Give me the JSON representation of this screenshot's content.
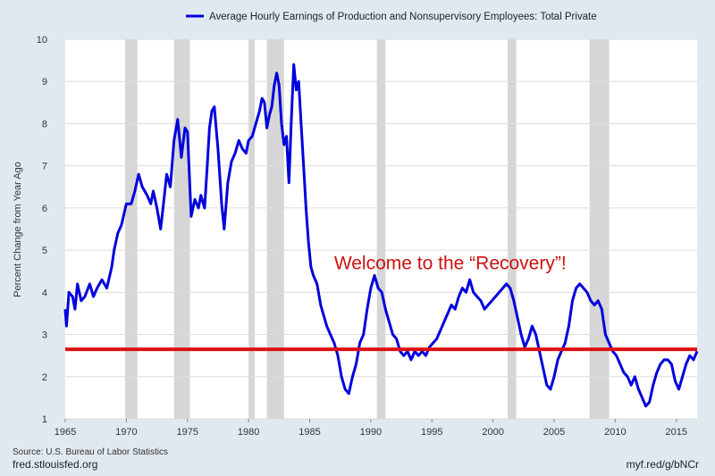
{
  "chart_data": {
    "type": "line",
    "legend": "Average Hourly Earnings of Production and Nonsupervisory Employees: Total Private",
    "legend_placement": "top-center",
    "ylabel": "Percent Change from Year Ago",
    "xlabel": "",
    "xlim": [
      1965,
      2016.7
    ],
    "ylim": [
      1,
      10
    ],
    "x_ticks": [
      "1965",
      "1970",
      "1975",
      "1980",
      "1985",
      "1990",
      "1995",
      "2000",
      "2005",
      "2010",
      "2015"
    ],
    "y_ticks": [
      "1",
      "2",
      "3",
      "4",
      "5",
      "6",
      "7",
      "8",
      "9",
      "10"
    ],
    "grid": "horizontal",
    "line_color": "#0000dd",
    "recession_color": "#d6d6d6",
    "recessions": [
      [
        1969.9,
        1970.9
      ],
      [
        1973.9,
        1975.2
      ],
      [
        1980.0,
        1980.5
      ],
      [
        1981.5,
        1982.9
      ],
      [
        1990.5,
        1991.2
      ],
      [
        2001.2,
        2001.9
      ],
      [
        2007.9,
        2009.5
      ]
    ],
    "reference_line": {
      "y": 2.65,
      "color": "#dd1111"
    },
    "annotation": {
      "text": "Welcome to the “Recovery”!",
      "x": 1996.5,
      "y": 4.55,
      "color": "#cc1111"
    },
    "series": [
      {
        "points": [
          [
            1965.0,
            3.6
          ],
          [
            1965.1,
            3.2
          ],
          [
            1965.3,
            4.0
          ],
          [
            1965.6,
            3.9
          ],
          [
            1965.8,
            3.6
          ],
          [
            1966.0,
            4.2
          ],
          [
            1966.3,
            3.8
          ],
          [
            1966.6,
            3.9
          ],
          [
            1967.0,
            4.2
          ],
          [
            1967.3,
            3.9
          ],
          [
            1967.6,
            4.1
          ],
          [
            1968.0,
            4.3
          ],
          [
            1968.4,
            4.1
          ],
          [
            1968.8,
            4.6
          ],
          [
            1969.0,
            5.0
          ],
          [
            1969.3,
            5.4
          ],
          [
            1969.6,
            5.6
          ],
          [
            1970.0,
            6.1
          ],
          [
            1970.4,
            6.1
          ],
          [
            1970.7,
            6.4
          ],
          [
            1971.0,
            6.8
          ],
          [
            1971.3,
            6.5
          ],
          [
            1971.7,
            6.3
          ],
          [
            1972.0,
            6.1
          ],
          [
            1972.2,
            6.4
          ],
          [
            1972.5,
            6.0
          ],
          [
            1972.8,
            5.5
          ],
          [
            1973.0,
            6.0
          ],
          [
            1973.3,
            6.8
          ],
          [
            1973.6,
            6.5
          ],
          [
            1973.9,
            7.6
          ],
          [
            1974.2,
            8.1
          ],
          [
            1974.5,
            7.2
          ],
          [
            1974.8,
            7.9
          ],
          [
            1975.0,
            7.8
          ],
          [
            1975.3,
            5.8
          ],
          [
            1975.6,
            6.2
          ],
          [
            1975.9,
            6.0
          ],
          [
            1976.1,
            6.3
          ],
          [
            1976.4,
            6.0
          ],
          [
            1976.6,
            6.9
          ],
          [
            1976.8,
            7.9
          ],
          [
            1977.0,
            8.3
          ],
          [
            1977.2,
            8.4
          ],
          [
            1977.5,
            7.4
          ],
          [
            1977.8,
            6.1
          ],
          [
            1978.0,
            5.5
          ],
          [
            1978.3,
            6.6
          ],
          [
            1978.6,
            7.1
          ],
          [
            1978.9,
            7.3
          ],
          [
            1979.2,
            7.6
          ],
          [
            1979.5,
            7.4
          ],
          [
            1979.8,
            7.3
          ],
          [
            1980.0,
            7.6
          ],
          [
            1980.3,
            7.7
          ],
          [
            1980.6,
            8.0
          ],
          [
            1980.9,
            8.3
          ],
          [
            1981.1,
            8.6
          ],
          [
            1981.3,
            8.5
          ],
          [
            1981.5,
            7.9
          ],
          [
            1981.7,
            8.2
          ],
          [
            1981.9,
            8.4
          ],
          [
            1982.1,
            8.9
          ],
          [
            1982.3,
            9.2
          ],
          [
            1982.5,
            8.9
          ],
          [
            1982.7,
            8.0
          ],
          [
            1982.9,
            7.5
          ],
          [
            1983.1,
            7.7
          ],
          [
            1983.3,
            6.6
          ],
          [
            1983.5,
            8.1
          ],
          [
            1983.7,
            9.4
          ],
          [
            1983.9,
            8.8
          ],
          [
            1984.1,
            9.0
          ],
          [
            1984.3,
            8.0
          ],
          [
            1984.5,
            7.0
          ],
          [
            1984.7,
            6.0
          ],
          [
            1984.9,
            5.2
          ],
          [
            1985.1,
            4.6
          ],
          [
            1985.3,
            4.4
          ],
          [
            1985.6,
            4.2
          ],
          [
            1985.9,
            3.7
          ],
          [
            1986.1,
            3.5
          ],
          [
            1986.4,
            3.2
          ],
          [
            1986.7,
            3.0
          ],
          [
            1987.0,
            2.8
          ],
          [
            1987.3,
            2.5
          ],
          [
            1987.6,
            2.0
          ],
          [
            1987.9,
            1.7
          ],
          [
            1988.2,
            1.6
          ],
          [
            1988.5,
            2.0
          ],
          [
            1988.8,
            2.3
          ],
          [
            1989.1,
            2.8
          ],
          [
            1989.4,
            3.0
          ],
          [
            1989.7,
            3.6
          ],
          [
            1990.0,
            4.1
          ],
          [
            1990.3,
            4.4
          ],
          [
            1990.6,
            4.1
          ],
          [
            1990.9,
            4.0
          ],
          [
            1991.2,
            3.6
          ],
          [
            1991.5,
            3.3
          ],
          [
            1991.8,
            3.0
          ],
          [
            1992.1,
            2.9
          ],
          [
            1992.4,
            2.6
          ],
          [
            1992.7,
            2.5
          ],
          [
            1993.0,
            2.6
          ],
          [
            1993.3,
            2.4
          ],
          [
            1993.6,
            2.6
          ],
          [
            1993.9,
            2.5
          ],
          [
            1994.2,
            2.6
          ],
          [
            1994.5,
            2.5
          ],
          [
            1994.8,
            2.7
          ],
          [
            1995.1,
            2.8
          ],
          [
            1995.4,
            2.9
          ],
          [
            1995.7,
            3.1
          ],
          [
            1996.0,
            3.3
          ],
          [
            1996.3,
            3.5
          ],
          [
            1996.6,
            3.7
          ],
          [
            1996.9,
            3.6
          ],
          [
            1997.2,
            3.9
          ],
          [
            1997.5,
            4.1
          ],
          [
            1997.8,
            4.0
          ],
          [
            1998.1,
            4.3
          ],
          [
            1998.4,
            4.0
          ],
          [
            1998.7,
            3.9
          ],
          [
            1999.0,
            3.8
          ],
          [
            1999.3,
            3.6
          ],
          [
            1999.6,
            3.7
          ],
          [
            1999.9,
            3.8
          ],
          [
            2000.2,
            3.9
          ],
          [
            2000.5,
            4.0
          ],
          [
            2000.8,
            4.1
          ],
          [
            2001.1,
            4.2
          ],
          [
            2001.4,
            4.1
          ],
          [
            2001.7,
            3.8
          ],
          [
            2002.0,
            3.4
          ],
          [
            2002.3,
            3.0
          ],
          [
            2002.6,
            2.7
          ],
          [
            2002.9,
            2.9
          ],
          [
            2003.2,
            3.2
          ],
          [
            2003.5,
            3.0
          ],
          [
            2003.8,
            2.6
          ],
          [
            2004.1,
            2.2
          ],
          [
            2004.4,
            1.8
          ],
          [
            2004.7,
            1.7
          ],
          [
            2005.0,
            2.0
          ],
          [
            2005.3,
            2.4
          ],
          [
            2005.6,
            2.6
          ],
          [
            2005.9,
            2.8
          ],
          [
            2006.2,
            3.2
          ],
          [
            2006.5,
            3.8
          ],
          [
            2006.8,
            4.1
          ],
          [
            2007.1,
            4.2
          ],
          [
            2007.4,
            4.1
          ],
          [
            2007.7,
            4.0
          ],
          [
            2008.0,
            3.8
          ],
          [
            2008.3,
            3.7
          ],
          [
            2008.6,
            3.8
          ],
          [
            2008.9,
            3.6
          ],
          [
            2009.2,
            3.0
          ],
          [
            2009.5,
            2.8
          ],
          [
            2009.8,
            2.6
          ],
          [
            2010.1,
            2.5
          ],
          [
            2010.4,
            2.3
          ],
          [
            2010.7,
            2.1
          ],
          [
            2011.0,
            2.0
          ],
          [
            2011.3,
            1.8
          ],
          [
            2011.6,
            2.0
          ],
          [
            2011.9,
            1.7
          ],
          [
            2012.2,
            1.5
          ],
          [
            2012.5,
            1.3
          ],
          [
            2012.8,
            1.4
          ],
          [
            2013.1,
            1.8
          ],
          [
            2013.4,
            2.1
          ],
          [
            2013.7,
            2.3
          ],
          [
            2014.0,
            2.4
          ],
          [
            2014.3,
            2.4
          ],
          [
            2014.6,
            2.3
          ],
          [
            2014.9,
            1.9
          ],
          [
            2015.2,
            1.7
          ],
          [
            2015.5,
            2.0
          ],
          [
            2015.8,
            2.3
          ],
          [
            2016.1,
            2.5
          ],
          [
            2016.4,
            2.4
          ],
          [
            2016.7,
            2.6
          ]
        ]
      }
    ]
  },
  "footer": {
    "source": "Source: U.S. Bureau of Labor Statistics",
    "site": "fred.stlouisfed.org",
    "short_link": "myf.red/g/bNCr"
  }
}
